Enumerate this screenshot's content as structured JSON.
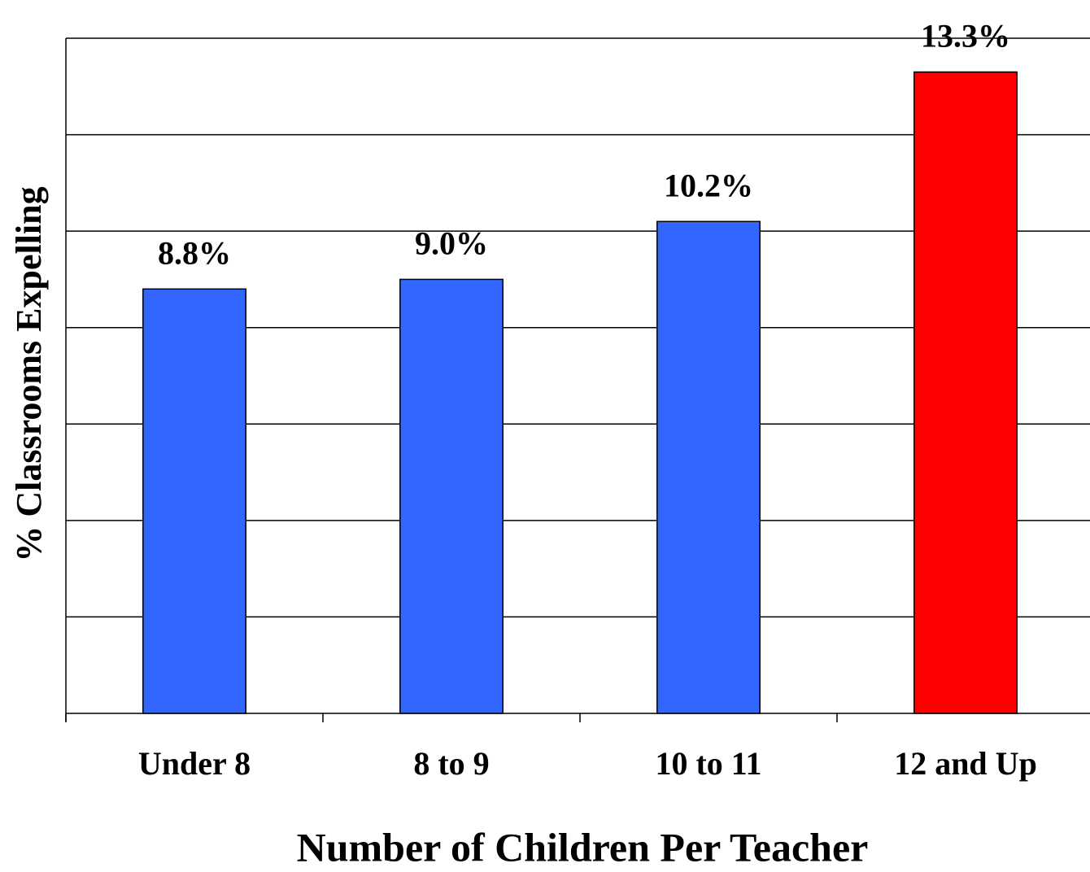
{
  "chart_data": {
    "type": "bar",
    "x_label": "Number of Children Per Teacher",
    "y_label": "% Classrooms Expelling",
    "categories": [
      "Under 8",
      "8 to 9",
      "10 to 11",
      "12 and Up"
    ],
    "values": [
      8.8,
      9.0,
      10.2,
      13.3
    ],
    "value_labels": [
      "8.8%",
      "9.0%",
      "10.2%",
      "13.3%"
    ],
    "colors": [
      "#3366ff",
      "#3366ff",
      "#3366ff",
      "#ff0000"
    ],
    "ylim": [
      0,
      14
    ],
    "yticks": [
      0,
      2,
      4,
      6,
      8,
      10,
      12,
      14
    ],
    "grid": true
  }
}
